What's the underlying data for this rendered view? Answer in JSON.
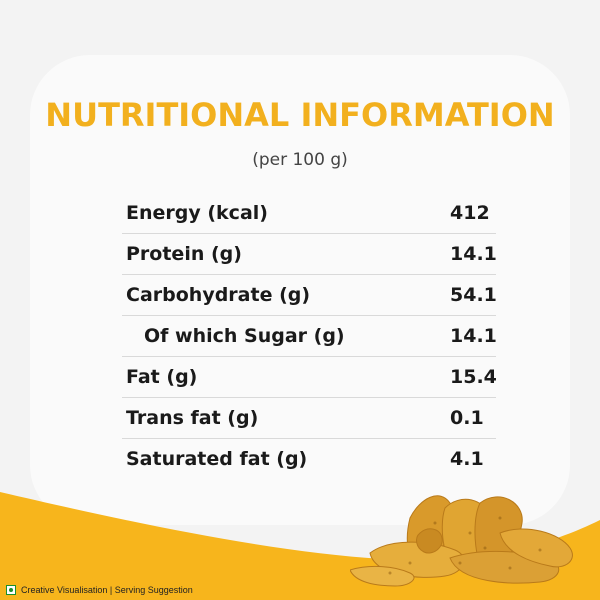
{
  "header": {
    "title": "NUTRITIONAL INFORMATION",
    "subtitle": "(per 100 g)"
  },
  "nutrition": {
    "rows": [
      {
        "label": "Energy (kcal)",
        "value": "412"
      },
      {
        "label": "Protein (g)",
        "value": "14.1"
      },
      {
        "label": "Carbohydrate (g)",
        "value": "54.1"
      },
      {
        "label": "Of which Sugar (g)",
        "value": "14.1"
      },
      {
        "label": "Fat (g)",
        "value": "15.4"
      },
      {
        "label": "Trans fat (g)",
        "value": "0.1"
      },
      {
        "label": "Saturated fat (g)",
        "value": "4.1"
      }
    ]
  },
  "footer": {
    "note": "Creative Visualisation | Serving Suggestion",
    "icon": "veg-mark-icon"
  },
  "colors": {
    "accent": "#f2b01e",
    "wave": "#f7b51c",
    "background": "#f3f3f3"
  }
}
